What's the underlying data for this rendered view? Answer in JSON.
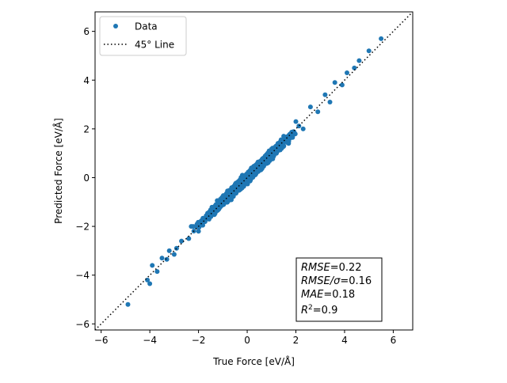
{
  "chart_data": {
    "type": "scatter",
    "xlabel": "True Force [eV/Å]",
    "ylabel": "Predicted Force [eV/Å]",
    "xlim": [
      -6.25,
      6.8
    ],
    "ylim": [
      -6.25,
      6.8
    ],
    "xticks": [
      -6,
      -4,
      -2,
      0,
      2,
      4,
      6
    ],
    "yticks": [
      -6,
      -4,
      -2,
      0,
      2,
      4,
      6
    ],
    "tick_labels": [
      "−6",
      "−4",
      "−2",
      "0",
      "2",
      "4",
      "6"
    ],
    "grid": false,
    "legend": {
      "position": "upper-left",
      "entries": [
        {
          "label": "Data",
          "marker": "circle",
          "color": "#1f77b4"
        },
        {
          "label": "45° Line",
          "style": "dotted",
          "color": "#000000"
        }
      ]
    },
    "reference_line": {
      "name": "45° Line",
      "slope": 1,
      "intercept": 0,
      "color": "#000000",
      "style": "dotted"
    },
    "series": [
      {
        "name": "Data",
        "color": "#1f77b4",
        "sample_points": [
          [
            -4.9,
            -5.2
          ],
          [
            -4.1,
            -4.2
          ],
          [
            -4.0,
            -4.35
          ],
          [
            -3.9,
            -3.6
          ],
          [
            -3.7,
            -3.85
          ],
          [
            -3.5,
            -3.3
          ],
          [
            -3.3,
            -3.35
          ],
          [
            -3.2,
            -3.0
          ],
          [
            -3.0,
            -3.15
          ],
          [
            -2.9,
            -2.9
          ],
          [
            -2.7,
            -2.6
          ],
          [
            -2.4,
            -2.5
          ],
          [
            -2.3,
            -2.0
          ],
          [
            -2.0,
            -2.2
          ],
          [
            -1.8,
            -1.7
          ],
          [
            -1.5,
            -1.6
          ],
          [
            -1.2,
            -1.0
          ],
          [
            -1.0,
            -1.1
          ],
          [
            -0.7,
            -0.6
          ],
          [
            -0.4,
            -0.5
          ],
          [
            -0.2,
            0.1
          ],
          [
            0.0,
            -0.1
          ],
          [
            0.3,
            0.4
          ],
          [
            0.6,
            0.45
          ],
          [
            0.9,
            1.1
          ],
          [
            1.2,
            1.0
          ],
          [
            1.5,
            1.7
          ],
          [
            1.7,
            1.4
          ],
          [
            2.0,
            2.3
          ],
          [
            2.3,
            2.0
          ],
          [
            2.6,
            2.9
          ],
          [
            2.9,
            2.7
          ],
          [
            3.2,
            3.4
          ],
          [
            3.4,
            3.1
          ],
          [
            3.6,
            3.9
          ],
          [
            3.9,
            3.8
          ],
          [
            4.1,
            4.3
          ],
          [
            4.4,
            4.5
          ],
          [
            4.6,
            4.8
          ],
          [
            5.0,
            5.2
          ],
          [
            5.5,
            5.7
          ]
        ],
        "spread": 0.22
      }
    ],
    "metrics_box": {
      "position": "lower-right",
      "lines": [
        {
          "name": "RMSE",
          "value": "=0.22"
        },
        {
          "name": "RMSE/σ",
          "value": "=0.16"
        },
        {
          "name": "MAE",
          "value": "=0.18"
        },
        {
          "name": "R",
          "sup": "2",
          "value": "=0.9"
        }
      ]
    },
    "colors": {
      "points": "#1f77b4",
      "line": "#000000",
      "axes": "#000000"
    }
  }
}
